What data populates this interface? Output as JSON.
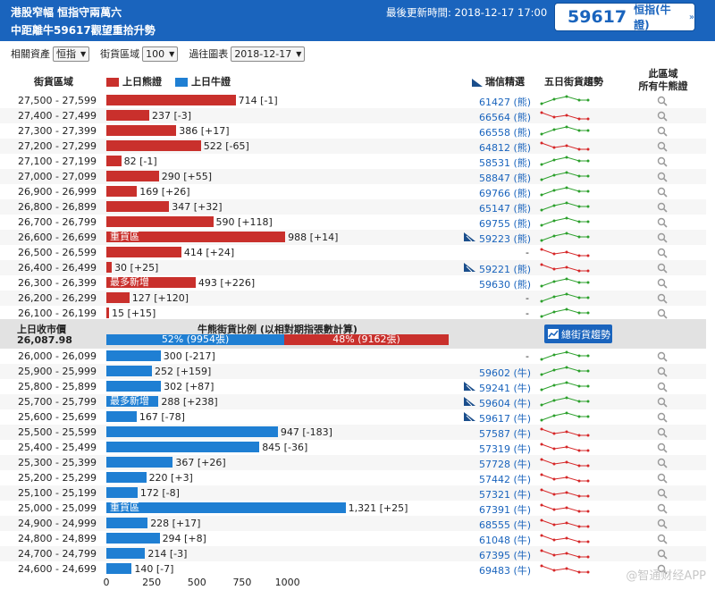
{
  "header": {
    "title_line1": "港股窄幅 恒指守兩萬六",
    "title_line2": "中距離牛59617觀望重拾升勢",
    "update_label": "最後更新時間: 2018-12-17 17:00",
    "badge_code": "59617",
    "badge_label": "恒指(牛證)",
    "badge_arrow": "»"
  },
  "controls": {
    "asset_label": "相關資產",
    "asset_value": "恒指",
    "range_label": "街貨區域",
    "range_value": "100",
    "history_label": "過往圖表",
    "history_value": "2018-12-17"
  },
  "columns": {
    "range": "街貨區域",
    "bear": "上日熊證",
    "bull": "上日牛證",
    "ubs": "瑞信精選",
    "trend": "五日街貨趨勢",
    "all_line1": "此區域",
    "all_line2": "所有牛熊證"
  },
  "colors": {
    "bear": "#c9302c",
    "bull": "#1f7fd3",
    "header": "#1a64bd",
    "trend_up": "#2ca02c",
    "trend_down": "#d62728"
  },
  "bear_rows": [
    {
      "range": "27,500 - 27,599",
      "value": 714,
      "change": "[-1]",
      "warrant": "61427 (熊)",
      "flag": false,
      "tag": "",
      "trend": "up"
    },
    {
      "range": "27,400 - 27,499",
      "value": 237,
      "change": "[-3]",
      "warrant": "66564 (熊)",
      "flag": false,
      "tag": "",
      "trend": "down"
    },
    {
      "range": "27,300 - 27,399",
      "value": 386,
      "change": "[+17]",
      "warrant": "66558 (熊)",
      "flag": false,
      "tag": "",
      "trend": "up"
    },
    {
      "range": "27,200 - 27,299",
      "value": 522,
      "change": "[-65]",
      "warrant": "64812 (熊)",
      "flag": false,
      "tag": "",
      "trend": "down"
    },
    {
      "range": "27,100 - 27,199",
      "value": 82,
      "change": "[-1]",
      "warrant": "58531 (熊)",
      "flag": false,
      "tag": "",
      "trend": "up"
    },
    {
      "range": "27,000 - 27,099",
      "value": 290,
      "change": "[+55]",
      "warrant": "58847 (熊)",
      "flag": false,
      "tag": "",
      "trend": "up"
    },
    {
      "range": "26,900 - 26,999",
      "value": 169,
      "change": "[+26]",
      "warrant": "69766 (熊)",
      "flag": false,
      "tag": "",
      "trend": "up"
    },
    {
      "range": "26,800 - 26,899",
      "value": 347,
      "change": "[+32]",
      "warrant": "65147 (熊)",
      "flag": false,
      "tag": "",
      "trend": "up"
    },
    {
      "range": "26,700 - 26,799",
      "value": 590,
      "change": "[+118]",
      "warrant": "69755 (熊)",
      "flag": false,
      "tag": "",
      "trend": "up"
    },
    {
      "range": "26,600 - 26,699",
      "value": 988,
      "change": "[+14]",
      "warrant": "59223 (熊)",
      "flag": true,
      "tag": "重貨區",
      "trend": "up"
    },
    {
      "range": "26,500 - 26,599",
      "value": 414,
      "change": "[+24]",
      "warrant": "-",
      "flag": false,
      "tag": "",
      "trend": "down"
    },
    {
      "range": "26,400 - 26,499",
      "value": 30,
      "change": "[+25]",
      "warrant": "59221 (熊)",
      "flag": true,
      "tag": "",
      "trend": "down"
    },
    {
      "range": "26,300 - 26,399",
      "value": 493,
      "change": "[+226]",
      "warrant": "59630 (熊)",
      "flag": false,
      "tag": "最多新增",
      "trend": "up"
    },
    {
      "range": "26,200 - 26,299",
      "value": 127,
      "change": "[+120]",
      "warrant": "-",
      "flag": false,
      "tag": "",
      "trend": "up"
    },
    {
      "range": "26,100 - 26,199",
      "value": 15,
      "change": "[+15]",
      "warrant": "-",
      "flag": false,
      "tag": "",
      "trend": "up"
    }
  ],
  "mid": {
    "close_label": "上日收市價",
    "close_value": "26,087.98",
    "ratio_title": "牛熊街貨比例 (以相對期指張數計算)",
    "bull_pct_label": "52% (9954張)",
    "bear_pct_label": "48% (9162張)",
    "bull_fraction": 0.52,
    "chart_button": "總街貨趨勢"
  },
  "bull_rows": [
    {
      "range": "26,000 - 26,099",
      "value": 300,
      "change": "[-217]",
      "warrant": "-",
      "flag": false,
      "tag": "",
      "trend": "up"
    },
    {
      "range": "25,900 - 25,999",
      "value": 252,
      "change": "[+159]",
      "warrant": "59602 (牛)",
      "flag": false,
      "tag": "",
      "trend": "up"
    },
    {
      "range": "25,800 - 25,899",
      "value": 302,
      "change": "[+87]",
      "warrant": "59241 (牛)",
      "flag": true,
      "tag": "",
      "trend": "up"
    },
    {
      "range": "25,700 - 25,799",
      "value": 288,
      "change": "[+238]",
      "warrant": "59604 (牛)",
      "flag": true,
      "tag": "最多新增",
      "trend": "up"
    },
    {
      "range": "25,600 - 25,699",
      "value": 167,
      "change": "[-78]",
      "warrant": "59617 (牛)",
      "flag": true,
      "tag": "",
      "trend": "up"
    },
    {
      "range": "25,500 - 25,599",
      "value": 947,
      "change": "[-183]",
      "warrant": "57587 (牛)",
      "flag": false,
      "tag": "",
      "trend": "down"
    },
    {
      "range": "25,400 - 25,499",
      "value": 845,
      "change": "[-36]",
      "warrant": "57319 (牛)",
      "flag": false,
      "tag": "",
      "trend": "down"
    },
    {
      "range": "25,300 - 25,399",
      "value": 367,
      "change": "[+26]",
      "warrant": "57728 (牛)",
      "flag": false,
      "tag": "",
      "trend": "down"
    },
    {
      "range": "25,200 - 25,299",
      "value": 220,
      "change": "[+3]",
      "warrant": "57442 (牛)",
      "flag": false,
      "tag": "",
      "trend": "down"
    },
    {
      "range": "25,100 - 25,199",
      "value": 172,
      "change": "[-8]",
      "warrant": "57321 (牛)",
      "flag": false,
      "tag": "",
      "trend": "down"
    },
    {
      "range": "25,000 - 25,099",
      "value": 1321,
      "change": "[+25]",
      "warrant": "67391 (牛)",
      "flag": false,
      "tag": "重貨區",
      "trend": "down"
    },
    {
      "range": "24,900 - 24,999",
      "value": 228,
      "change": "[+17]",
      "warrant": "68555 (牛)",
      "flag": false,
      "tag": "",
      "trend": "down"
    },
    {
      "range": "24,800 - 24,899",
      "value": 294,
      "change": "[+8]",
      "warrant": "61048 (牛)",
      "flag": false,
      "tag": "",
      "trend": "down"
    },
    {
      "range": "24,700 - 24,799",
      "value": 214,
      "change": "[-3]",
      "warrant": "67395 (牛)",
      "flag": false,
      "tag": "",
      "trend": "down"
    },
    {
      "range": "24,600 - 24,699",
      "value": 140,
      "change": "[-7]",
      "warrant": "69483 (牛)",
      "flag": false,
      "tag": "",
      "trend": "down"
    }
  ],
  "axis_ticks": [
    "0",
    "250",
    "500",
    "750",
    "1000"
  ],
  "watermark": "@智通财经APP"
}
